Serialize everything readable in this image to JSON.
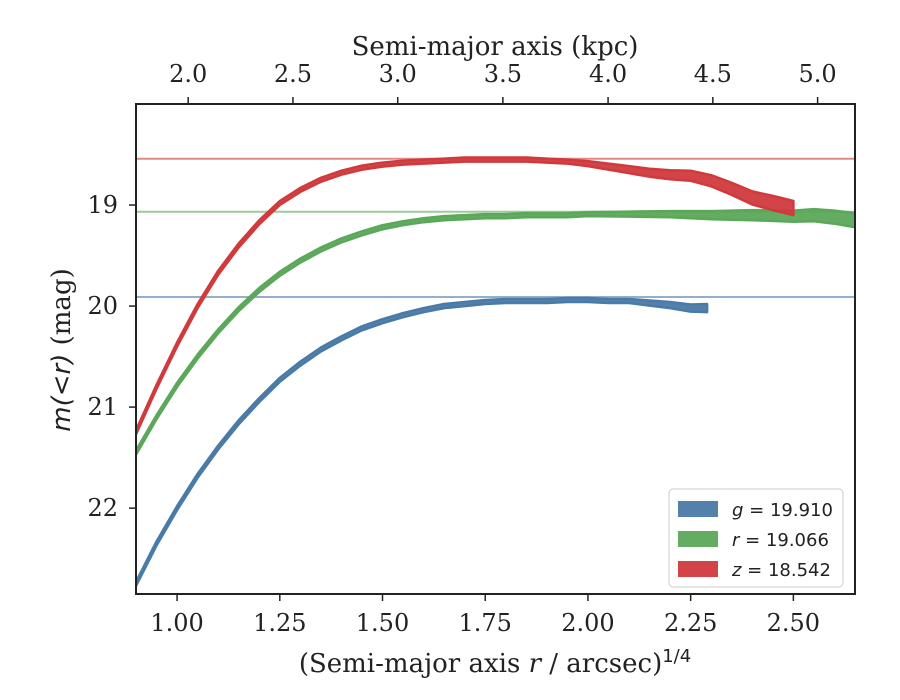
{
  "chart_data": {
    "type": "line",
    "xlabel": "(Semi-major axis r / arcsec)^1/4",
    "xlabel_parts": {
      "pre": "(Semi-major axis ",
      "var": "r",
      "mid": " / arcsec)",
      "sup": "1/4"
    },
    "x2label": "Semi-major axis (kpc)",
    "ylabel": "m(<r) (mag)",
    "ylabel_parts": {
      "var": "m(<r)",
      "unit": " (mag)"
    },
    "xlim": [
      0.9,
      2.65
    ],
    "ylim": [
      22.85,
      18.0
    ],
    "y_inverted": true,
    "xticks": [
      1.0,
      1.25,
      1.5,
      1.75,
      2.0,
      2.25,
      2.5
    ],
    "xtick_labels": [
      "1.00",
      "1.25",
      "1.50",
      "1.75",
      "2.00",
      "2.25",
      "2.50"
    ],
    "yticks": [
      19,
      20,
      21,
      22
    ],
    "ytick_labels": [
      "19",
      "20",
      "21",
      "22"
    ],
    "top_axis": {
      "ticks": [
        2.0,
        2.5,
        3.0,
        3.5,
        4.0,
        4.5,
        5.0
      ],
      "tick_labels": [
        "2.0",
        "2.5",
        "3.0",
        "3.5",
        "4.0",
        "4.5",
        "5.0"
      ],
      "x_positions": [
        1.027,
        1.282,
        1.537,
        1.793,
        2.049,
        2.304,
        2.559
      ]
    },
    "legend": "lower-right",
    "grid": false,
    "series": [
      {
        "name": "g",
        "label_var": "g",
        "label_value": "19.910",
        "color": "#4a7aa8",
        "asymptote": 19.91,
        "x": [
          0.9,
          0.95,
          1.0,
          1.05,
          1.1,
          1.15,
          1.2,
          1.25,
          1.3,
          1.35,
          1.4,
          1.45,
          1.5,
          1.55,
          1.6,
          1.65,
          1.7,
          1.75,
          1.8,
          1.85,
          1.9,
          1.95,
          2.0,
          2.05,
          2.1,
          2.15,
          2.2,
          2.25,
          2.29
        ],
        "y": [
          22.75,
          22.35,
          22.0,
          21.68,
          21.4,
          21.15,
          20.93,
          20.73,
          20.57,
          20.43,
          20.32,
          20.22,
          20.15,
          20.09,
          20.04,
          20.0,
          19.98,
          19.96,
          19.95,
          19.95,
          19.95,
          19.94,
          19.94,
          19.95,
          19.95,
          19.97,
          19.99,
          20.02,
          20.02
        ],
        "band": [
          0.02,
          0.02,
          0.02,
          0.02,
          0.02,
          0.02,
          0.02,
          0.02,
          0.02,
          0.02,
          0.02,
          0.02,
          0.02,
          0.02,
          0.02,
          0.02,
          0.02,
          0.02,
          0.02,
          0.02,
          0.02,
          0.02,
          0.02,
          0.02,
          0.02,
          0.025,
          0.03,
          0.035,
          0.04
        ]
      },
      {
        "name": "r",
        "label_var": "r",
        "label_value": "19.066",
        "color": "#5ba85a",
        "asymptote": 19.066,
        "x": [
          0.9,
          0.95,
          1.0,
          1.05,
          1.1,
          1.15,
          1.2,
          1.25,
          1.3,
          1.35,
          1.4,
          1.45,
          1.5,
          1.55,
          1.6,
          1.65,
          1.7,
          1.75,
          1.8,
          1.85,
          1.9,
          1.95,
          2.0,
          2.1,
          2.2,
          2.3,
          2.4,
          2.5,
          2.55,
          2.6,
          2.65
        ],
        "y": [
          21.45,
          21.1,
          20.78,
          20.5,
          20.25,
          20.03,
          19.84,
          19.68,
          19.55,
          19.44,
          19.35,
          19.28,
          19.22,
          19.18,
          19.15,
          19.13,
          19.12,
          19.11,
          19.11,
          19.1,
          19.1,
          19.1,
          19.09,
          19.09,
          19.09,
          19.1,
          19.1,
          19.11,
          19.1,
          19.12,
          19.15
        ],
        "band": [
          0.02,
          0.02,
          0.02,
          0.02,
          0.02,
          0.02,
          0.02,
          0.02,
          0.02,
          0.02,
          0.02,
          0.02,
          0.02,
          0.02,
          0.02,
          0.02,
          0.02,
          0.02,
          0.02,
          0.02,
          0.02,
          0.02,
          0.02,
          0.025,
          0.03,
          0.04,
          0.05,
          0.055,
          0.06,
          0.065,
          0.07
        ]
      },
      {
        "name": "z",
        "label_var": "z",
        "label_value": "18.542",
        "color": "#d03a3d",
        "asymptote": 18.542,
        "x": [
          0.9,
          0.95,
          1.0,
          1.05,
          1.1,
          1.15,
          1.2,
          1.25,
          1.3,
          1.35,
          1.4,
          1.45,
          1.5,
          1.55,
          1.6,
          1.65,
          1.7,
          1.75,
          1.8,
          1.85,
          1.9,
          1.95,
          2.0,
          2.05,
          2.1,
          2.15,
          2.2,
          2.25,
          2.3,
          2.35,
          2.4,
          2.45,
          2.5
        ],
        "y": [
          21.25,
          20.8,
          20.38,
          20.0,
          19.67,
          19.4,
          19.17,
          18.98,
          18.85,
          18.75,
          18.68,
          18.63,
          18.6,
          18.58,
          18.57,
          18.56,
          18.55,
          18.55,
          18.55,
          18.55,
          18.56,
          18.57,
          18.59,
          18.62,
          18.65,
          18.68,
          18.7,
          18.71,
          18.76,
          18.84,
          18.93,
          18.98,
          19.03
        ],
        "band": [
          0.02,
          0.02,
          0.02,
          0.02,
          0.02,
          0.02,
          0.02,
          0.02,
          0.02,
          0.02,
          0.02,
          0.02,
          0.02,
          0.02,
          0.02,
          0.02,
          0.02,
          0.02,
          0.02,
          0.02,
          0.02,
          0.02,
          0.025,
          0.03,
          0.035,
          0.04,
          0.045,
          0.05,
          0.055,
          0.06,
          0.065,
          0.07,
          0.07
        ]
      }
    ]
  }
}
